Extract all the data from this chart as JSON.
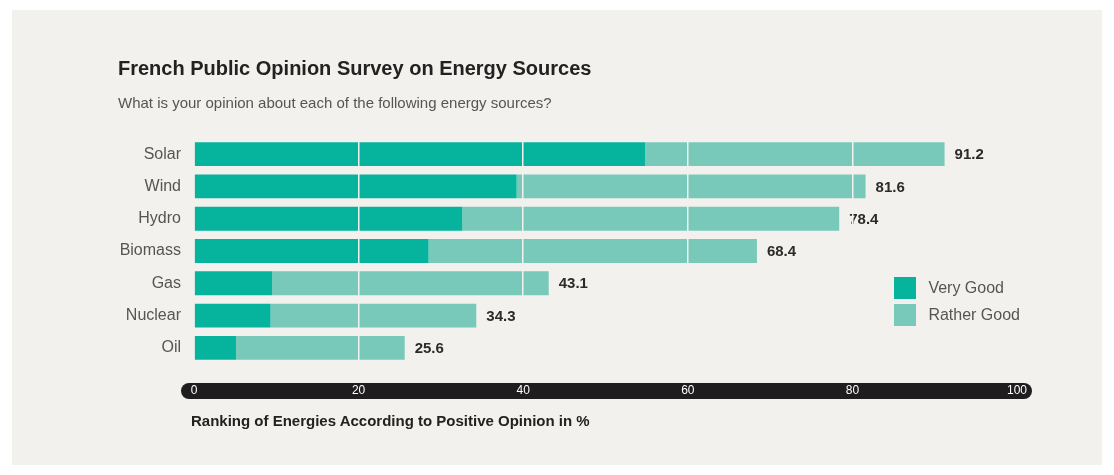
{
  "chart_data": {
    "type": "bar",
    "orientation": "horizontal",
    "stacked": true,
    "title": "French Public Opinion Survey on Energy Sources",
    "subtitle": "What is your opinion about each of the following energy sources?",
    "xlabel": "Ranking of Energies According to Positive Opinion in %",
    "categories": [
      "Solar",
      "Wind",
      "Hydro",
      "Biomass",
      "Gas",
      "Nuclear",
      "Oil"
    ],
    "series": [
      {
        "name": "Very Good",
        "color": "#06b39c",
        "values": [
          54.8,
          39.2,
          32.6,
          28.5,
          9.5,
          9.3,
          5.1
        ]
      },
      {
        "name": "Rather Good",
        "color": "#78c9ba",
        "values": [
          36.4,
          42.4,
          45.8,
          39.9,
          33.6,
          25.0,
          20.5
        ]
      }
    ],
    "totals": [
      "91.2",
      "81.6",
      "78.4",
      "68.4",
      "43.1",
      "34.3",
      "25.6"
    ],
    "xlim": [
      0,
      100
    ],
    "xticks": [
      0,
      20,
      40,
      60,
      80,
      100
    ],
    "grid": "x",
    "legend": "bottom right"
  }
}
